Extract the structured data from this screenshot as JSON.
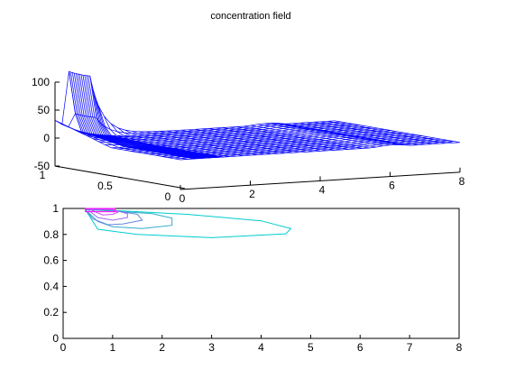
{
  "chart_data": [
    {
      "type": "surface",
      "title": "concentration field",
      "xlabel": "",
      "ylabel": "",
      "zlabel": "",
      "xlim": [
        0,
        8
      ],
      "ylim": [
        0,
        1
      ],
      "zlim": [
        -50,
        100
      ],
      "x_ticks": [
        "0",
        "2",
        "4",
        "6",
        "8"
      ],
      "y_ticks": [
        "0",
        "0.5",
        "1"
      ],
      "z_ticks": [
        "100",
        "50",
        "0",
        "-50"
      ],
      "mesh_color": "#0000ff",
      "peak": {
        "x_range": [
          0.4,
          1.0
        ],
        "y_range": [
          0.93,
          1.0
        ],
        "z": 100
      },
      "surface_level": 0,
      "notes_values": {
        "rim_dip_near_x_1": -15,
        "plateau_to_x": 6.2
      }
    },
    {
      "type": "contour",
      "xlabel": "",
      "ylabel": "",
      "xlim": [
        0,
        8
      ],
      "ylim": [
        0,
        1
      ],
      "x_ticks": [
        "0",
        "1",
        "2",
        "3",
        "4",
        "5",
        "6",
        "7",
        "8"
      ],
      "y_ticks": [
        "0",
        "0.2",
        "0.4",
        "0.6",
        "0.8",
        "1"
      ],
      "colors": [
        "#00cccc",
        "#33aacc",
        "#6688dd",
        "#9966ee",
        "#cc44ff",
        "#ff00ff"
      ],
      "levels": [
        {
          "x": [
            0.45,
            1.0,
            2.5,
            4.0,
            4.6,
            4.5,
            3.0,
            1.5,
            0.7,
            0.45
          ],
          "y": [
            0.99,
            0.985,
            0.955,
            0.905,
            0.845,
            0.805,
            0.775,
            0.8,
            0.84,
            0.99
          ]
        },
        {
          "x": [
            0.45,
            1.0,
            1.8,
            2.2,
            2.2,
            1.6,
            1.0,
            0.7,
            0.45
          ],
          "y": [
            0.99,
            0.98,
            0.96,
            0.925,
            0.87,
            0.845,
            0.86,
            0.9,
            0.99
          ]
        },
        {
          "x": [
            0.45,
            1.0,
            1.5,
            1.6,
            1.2,
            0.9,
            0.6,
            0.45
          ],
          "y": [
            0.99,
            0.985,
            0.955,
            0.91,
            0.88,
            0.875,
            0.92,
            0.99
          ]
        },
        {
          "x": [
            0.45,
            1.0,
            1.3,
            1.3,
            1.0,
            0.7,
            0.5
          ],
          "y": [
            0.995,
            0.99,
            0.96,
            0.93,
            0.91,
            0.93,
            0.99
          ]
        },
        {
          "x": [
            0.45,
            1.0,
            1.1,
            1.0,
            0.8,
            0.55
          ],
          "y": [
            0.998,
            0.995,
            0.97,
            0.955,
            0.95,
            0.99
          ]
        },
        {
          "x": [
            0.45,
            1.05,
            1.05,
            0.45,
            0.45
          ],
          "y": [
            1.0,
            1.0,
            0.975,
            0.975,
            1.0
          ]
        }
      ]
    }
  ]
}
